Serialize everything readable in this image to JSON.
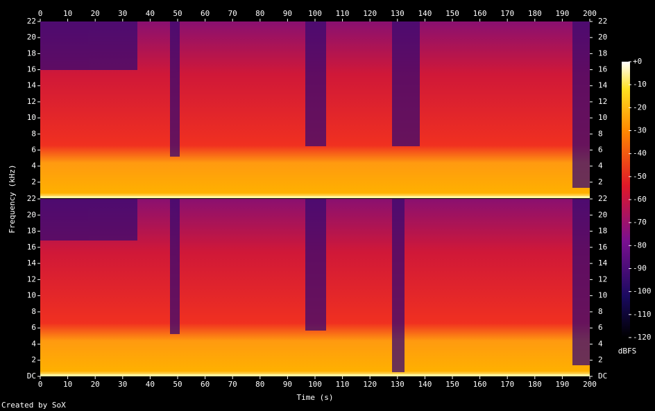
{
  "chart_data": {
    "type": "spectrogram",
    "x_label": "Time (s)",
    "y_label": "Frequency (kHz)",
    "xlim": [
      0,
      200
    ],
    "xticks": [
      0,
      10,
      20,
      30,
      40,
      50,
      60,
      70,
      80,
      90,
      100,
      110,
      120,
      130,
      140,
      150,
      160,
      170,
      180,
      190,
      200
    ],
    "channels": [
      {
        "ylim": [
          0,
          22
        ],
        "yticks": [
          2,
          4,
          6,
          8,
          10,
          12,
          14,
          16,
          18,
          20,
          22
        ]
      },
      {
        "ylim": [
          0,
          22
        ],
        "yticks": [
          {
            "value": 0,
            "label": "DC"
          },
          2,
          4,
          6,
          8,
          10,
          12,
          14,
          16,
          18,
          20,
          22
        ]
      }
    ],
    "colorbar": {
      "label": "dBFS",
      "lim": [
        -120,
        0
      ],
      "ticks": [
        {
          "value": 0,
          "label": "+0"
        },
        -10,
        -20,
        -30,
        -40,
        -50,
        -60,
        -70,
        -80,
        -90,
        -100,
        -110,
        -120
      ]
    }
  },
  "footer": "Created by SoX"
}
